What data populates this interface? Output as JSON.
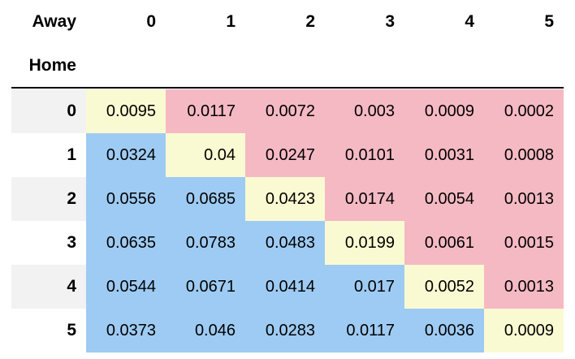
{
  "table": {
    "column_axis_label": "Away",
    "row_axis_label": "Home",
    "columns": [
      "0",
      "1",
      "2",
      "3",
      "4",
      "5"
    ],
    "rows": [
      {
        "index": "0",
        "values": [
          "0.0095",
          "0.0117",
          "0.0072",
          "0.003",
          "0.0009",
          "0.0002"
        ]
      },
      {
        "index": "1",
        "values": [
          "0.0324",
          "0.04",
          "0.0247",
          "0.0101",
          "0.0031",
          "0.0008"
        ]
      },
      {
        "index": "2",
        "values": [
          "0.0556",
          "0.0685",
          "0.0423",
          "0.0174",
          "0.0054",
          "0.0013"
        ]
      },
      {
        "index": "3",
        "values": [
          "0.0635",
          "0.0783",
          "0.0483",
          "0.0199",
          "0.0061",
          "0.0015"
        ]
      },
      {
        "index": "4",
        "values": [
          "0.0544",
          "0.0671",
          "0.0414",
          "0.017",
          "0.0052",
          "0.0013"
        ]
      },
      {
        "index": "5",
        "values": [
          "0.0373",
          "0.046",
          "0.0283",
          "0.0117",
          "0.0036",
          "0.0009"
        ]
      }
    ],
    "colors": {
      "home_win": "#9ecbf3",
      "draw": "#fafad2",
      "away_win": "#f5b9c3",
      "index_even_bg": "#f2f2f2",
      "index_odd_bg": "#ffffff"
    }
  }
}
